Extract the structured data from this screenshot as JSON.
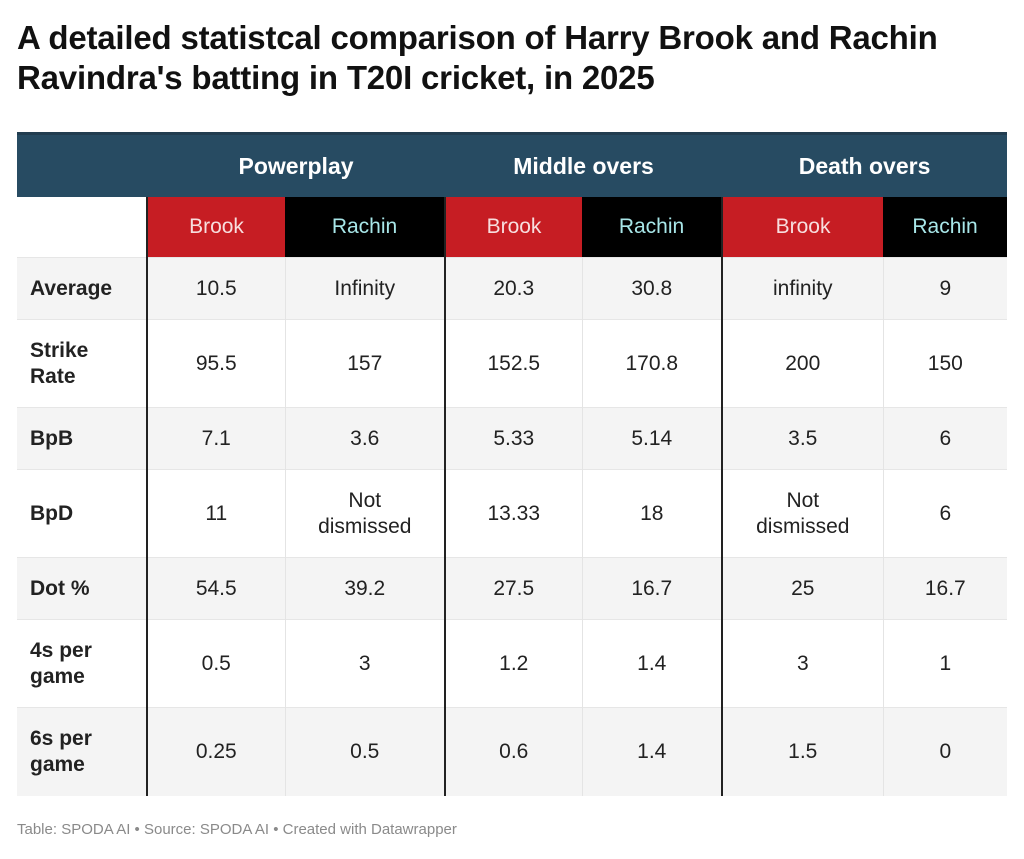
{
  "title": "A detailed statistcal comparison of Harry Brook and Rachin Ravindra's batting in T20I cricket, in 2025",
  "footer": "Table: SPODA AI • Source: SPODA AI • Created with Datawrapper",
  "colors": {
    "header": "#274b62",
    "brook": "#c61d23",
    "rachin": "#000000",
    "rachin_text": "#a8e6e8"
  },
  "chart_data": {
    "type": "table",
    "groups": [
      "Powerplay",
      "Middle overs",
      "Death overs"
    ],
    "players": [
      "Brook",
      "Rachin"
    ],
    "rows": [
      {
        "metric": "Average",
        "values": [
          "10.5",
          "Infinity",
          "20.3",
          "30.8",
          "infinity",
          "9"
        ]
      },
      {
        "metric": "Strike Rate",
        "values": [
          "95.5",
          "157",
          "152.5",
          "170.8",
          "200",
          "150"
        ]
      },
      {
        "metric": "BpB",
        "values": [
          "7.1",
          "3.6",
          "5.33",
          "5.14",
          "3.5",
          "6"
        ]
      },
      {
        "metric": "BpD",
        "values": [
          "11",
          "Not dismissed",
          "13.33",
          "18",
          "Not dismissed",
          "6"
        ]
      },
      {
        "metric": "Dot %",
        "values": [
          "54.5",
          "39.2",
          "27.5",
          "16.7",
          "25",
          "16.7"
        ]
      },
      {
        "metric": "4s per game",
        "values": [
          "0.5",
          "3",
          "1.2",
          "1.4",
          "3",
          "1"
        ]
      },
      {
        "metric": "6s per game",
        "values": [
          "0.25",
          "0.5",
          "0.6",
          "1.4",
          "1.5",
          "0"
        ]
      }
    ]
  }
}
